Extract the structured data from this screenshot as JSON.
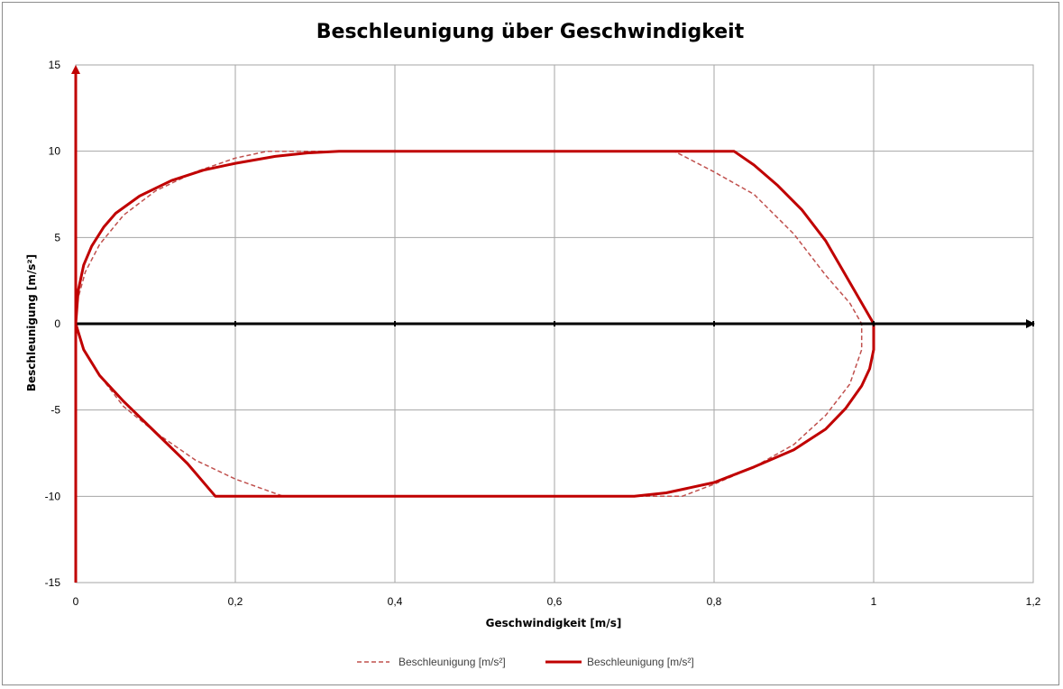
{
  "chart_data": {
    "type": "line",
    "title": "Beschleunigung über Geschwindigkeit",
    "xlabel": "Geschwindigkeit [m/s]",
    "ylabel": "Beschleunigung [m/s²]",
    "xlim": [
      0,
      1.2
    ],
    "ylim": [
      -15,
      15
    ],
    "x_ticks": [
      "0",
      "0,2",
      "0,4",
      "0,6",
      "0,8",
      "1",
      "1,2"
    ],
    "y_ticks": [
      "15",
      "10",
      "5",
      "0",
      "-5",
      "-10",
      "-15"
    ],
    "grid": true,
    "legend_position": "bottom",
    "colors": {
      "series": "#c00000",
      "axis": "#000000",
      "grid": "#a6a6a6"
    },
    "series": [
      {
        "name": "Beschleunigung [m/s²]",
        "style": "dashed",
        "x": [
          0,
          0.003,
          0.012,
          0.03,
          0.06,
          0.1,
          0.15,
          0.2,
          0.24,
          0.26,
          0.3,
          0.75,
          0.8,
          0.85,
          0.9,
          0.94,
          0.97,
          0.985,
          0.985,
          0.97,
          0.94,
          0.9,
          0.85,
          0.8,
          0.76,
          0.74,
          0.7,
          0.3,
          0.26,
          0.2,
          0.15,
          0.1,
          0.06,
          0.03,
          0.01,
          0
        ],
        "y": [
          0,
          1.5,
          3,
          4.6,
          6.3,
          7.7,
          8.8,
          9.6,
          10,
          10,
          10,
          10,
          8.8,
          7.5,
          5.2,
          2.8,
          1.2,
          0,
          -1.5,
          -3.5,
          -5.3,
          -7,
          -8.3,
          -9.3,
          -10,
          -10,
          -10,
          -10,
          -10,
          -9,
          -7.9,
          -6.3,
          -4.8,
          -3,
          -1.5,
          0
        ]
      },
      {
        "name": "Beschleunigung [m/s²]",
        "style": "solid",
        "x": [
          0,
          0.003,
          0.01,
          0.02,
          0.035,
          0.05,
          0.08,
          0.12,
          0.16,
          0.2,
          0.25,
          0.29,
          0.33,
          0.825,
          0.85,
          0.88,
          0.91,
          0.94,
          0.96,
          0.975,
          0.99,
          1.0,
          1.0,
          0.995,
          0.985,
          0.965,
          0.94,
          0.9,
          0.85,
          0.8,
          0.74,
          0.7,
          0.68,
          0.18,
          0.175,
          0.14,
          0.1,
          0.06,
          0.03,
          0.01,
          0
        ],
        "y": [
          0,
          1.9,
          3.4,
          4.5,
          5.6,
          6.4,
          7.4,
          8.3,
          8.9,
          9.3,
          9.7,
          9.9,
          10,
          10,
          9.2,
          8,
          6.6,
          4.8,
          3.2,
          2,
          0.8,
          0,
          -1.5,
          -2.6,
          -3.6,
          -4.9,
          -6.1,
          -7.3,
          -8.3,
          -9.2,
          -9.8,
          -10,
          -10,
          -10,
          -10,
          -8.1,
          -6.3,
          -4.5,
          -3,
          -1.5,
          0
        ]
      }
    ]
  }
}
